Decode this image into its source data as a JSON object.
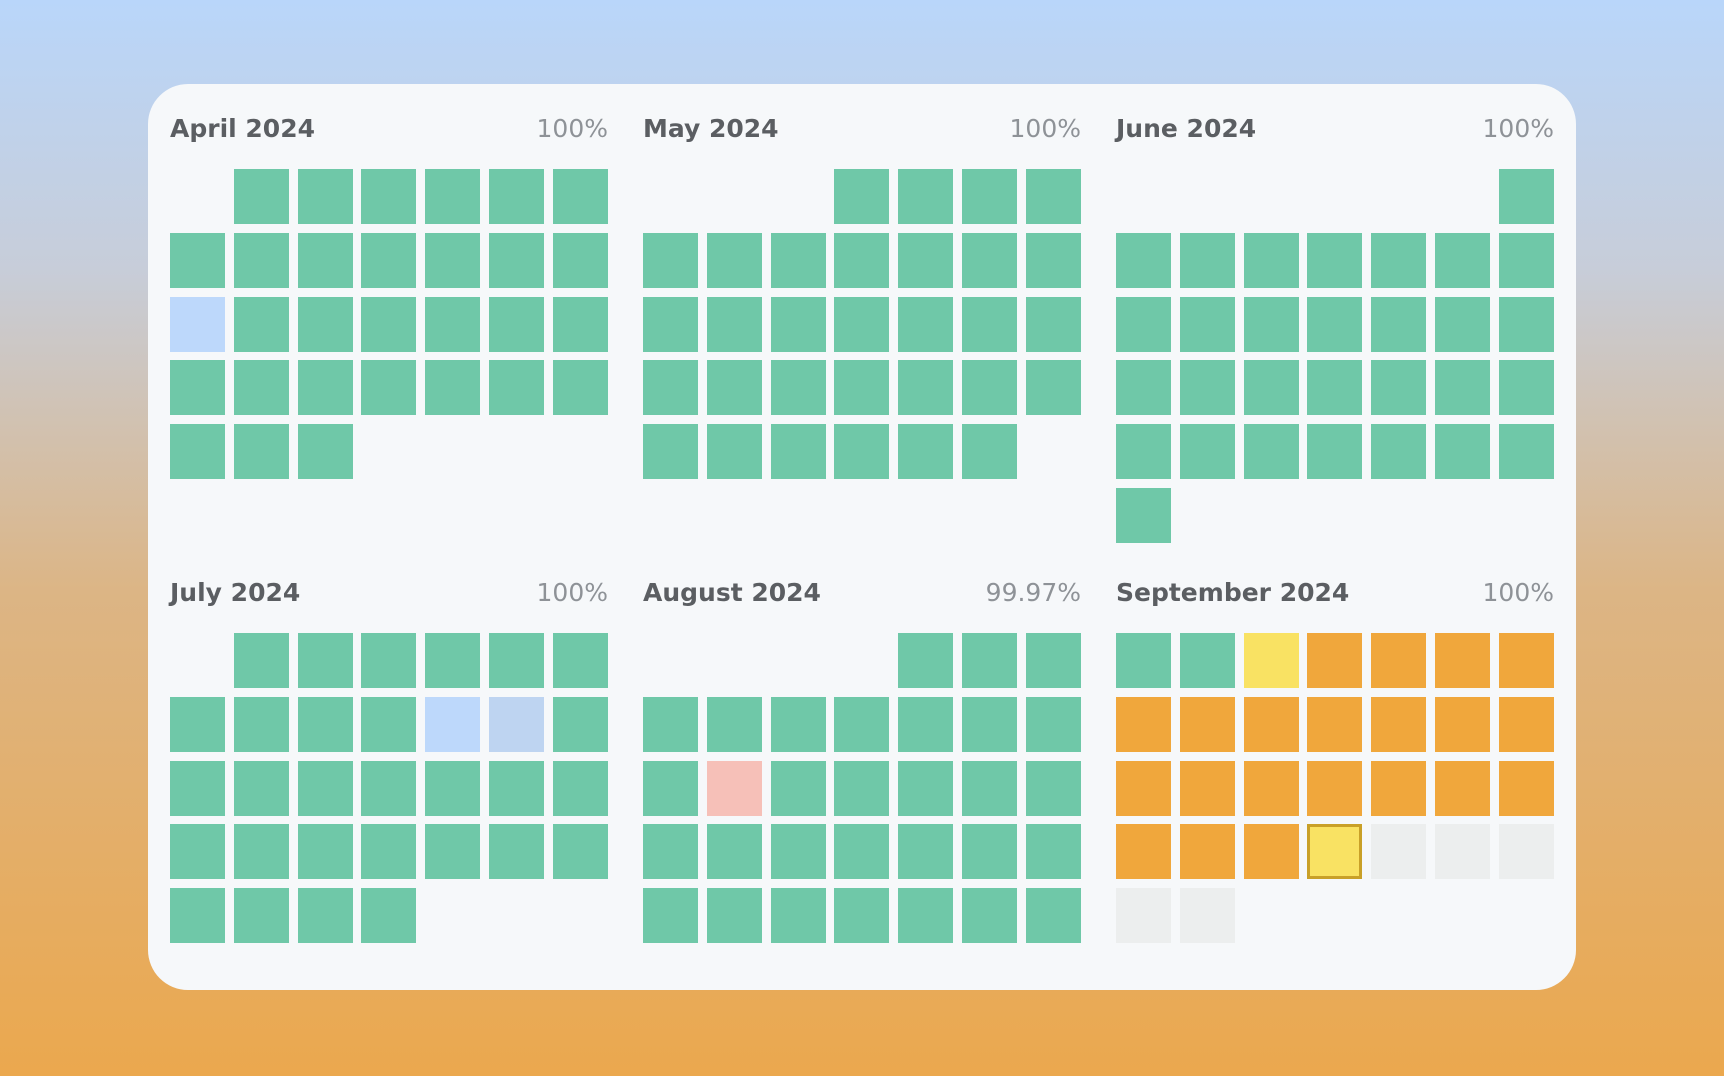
{
  "colors": {
    "up": "#6fc8a8",
    "maintenance": "#bdd8fb",
    "maintenance_alt": "#bed4f1",
    "degraded": "#f9e263",
    "outage": "#f6c0b8",
    "future": "#eceeee",
    "september_up": "#f0a73c",
    "selected_border": "#c9a028"
  },
  "months": [
    {
      "title": "April 2024",
      "percent": "100%",
      "start_offset": 1,
      "days": [
        "up",
        "up",
        "up",
        "up",
        "up",
        "up",
        "up",
        "up",
        "up",
        "up",
        "up",
        "up",
        "up",
        "maintenance",
        "up",
        "up",
        "up",
        "up",
        "up",
        "up",
        "up",
        "up",
        "up",
        "up",
        "up",
        "up",
        "up",
        "up",
        "up",
        "up"
      ]
    },
    {
      "title": "May 2024",
      "percent": "100%",
      "start_offset": 3,
      "days": [
        "up",
        "up",
        "up",
        "up",
        "up",
        "up",
        "up",
        "up",
        "up",
        "up",
        "up",
        "up",
        "up",
        "up",
        "up",
        "up",
        "up",
        "up",
        "up",
        "up",
        "up",
        "up",
        "up",
        "up",
        "up",
        "up",
        "up",
        "up",
        "up",
        "up",
        "up"
      ]
    },
    {
      "title": "June 2024",
      "percent": "100%",
      "start_offset": 6,
      "days": [
        "up",
        "up",
        "up",
        "up",
        "up",
        "up",
        "up",
        "up",
        "up",
        "up",
        "up",
        "up",
        "up",
        "up",
        "up",
        "up",
        "up",
        "up",
        "up",
        "up",
        "up",
        "up",
        "up",
        "up",
        "up",
        "up",
        "up",
        "up",
        "up",
        "up"
      ]
    },
    {
      "title": "July 2024",
      "percent": "100%",
      "start_offset": 1,
      "days": [
        "up",
        "up",
        "up",
        "up",
        "up",
        "up",
        "up",
        "up",
        "up",
        "up",
        "maintenance",
        "maintenance_alt",
        "up",
        "up",
        "up",
        "up",
        "up",
        "up",
        "up",
        "up",
        "up",
        "up",
        "up",
        "up",
        "up",
        "up",
        "up",
        "up",
        "up",
        "up",
        "up"
      ]
    },
    {
      "title": "August 2024",
      "percent": "99.97%",
      "start_offset": 4,
      "days": [
        "up",
        "up",
        "up",
        "up",
        "up",
        "up",
        "up",
        "up",
        "up",
        "up",
        "up",
        "outage",
        "up",
        "up",
        "up",
        "up",
        "up",
        "up",
        "up",
        "up",
        "up",
        "up",
        "up",
        "up",
        "up",
        "up",
        "up",
        "up",
        "up",
        "up",
        "up"
      ]
    },
    {
      "title": "September 2024",
      "percent": "100%",
      "start_offset": 0,
      "days": [
        "up",
        "up",
        "degraded",
        "september_up",
        "september_up",
        "september_up",
        "september_up",
        "september_up",
        "september_up",
        "september_up",
        "september_up",
        "september_up",
        "september_up",
        "september_up",
        "september_up",
        "september_up",
        "september_up",
        "september_up",
        "september_up",
        "september_up",
        "september_up",
        "september_up",
        "september_up",
        "september_up",
        "selected",
        "future",
        "future",
        "future",
        "future",
        "future"
      ]
    }
  ]
}
